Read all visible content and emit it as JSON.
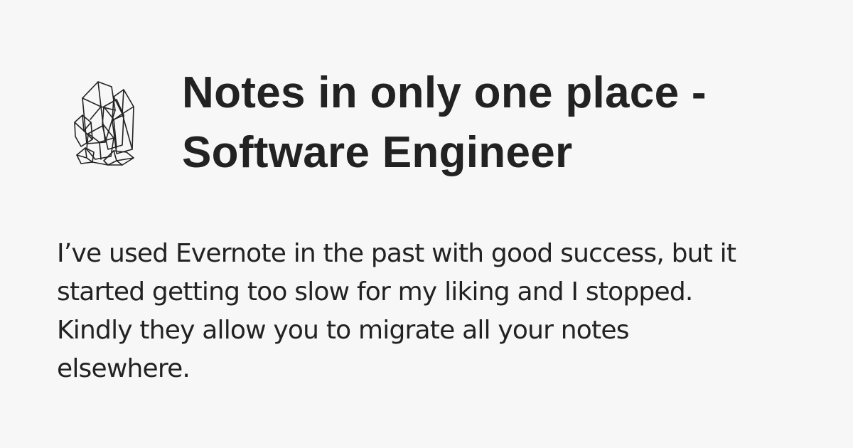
{
  "logo": {
    "icon": "crystal-cluster-icon"
  },
  "title": {
    "lines": [
      "Notes in only one place -",
      "Software Engineer"
    ]
  },
  "excerpt": {
    "lines": [
      "I’ve used Evernote in the past with good success, but it",
      "started getting too slow for my liking and I stopped.",
      "Kindly they allow you to migrate all your notes",
      "elsewhere."
    ]
  },
  "colors": {
    "background": "#f8f7f8",
    "text": "#222222"
  }
}
